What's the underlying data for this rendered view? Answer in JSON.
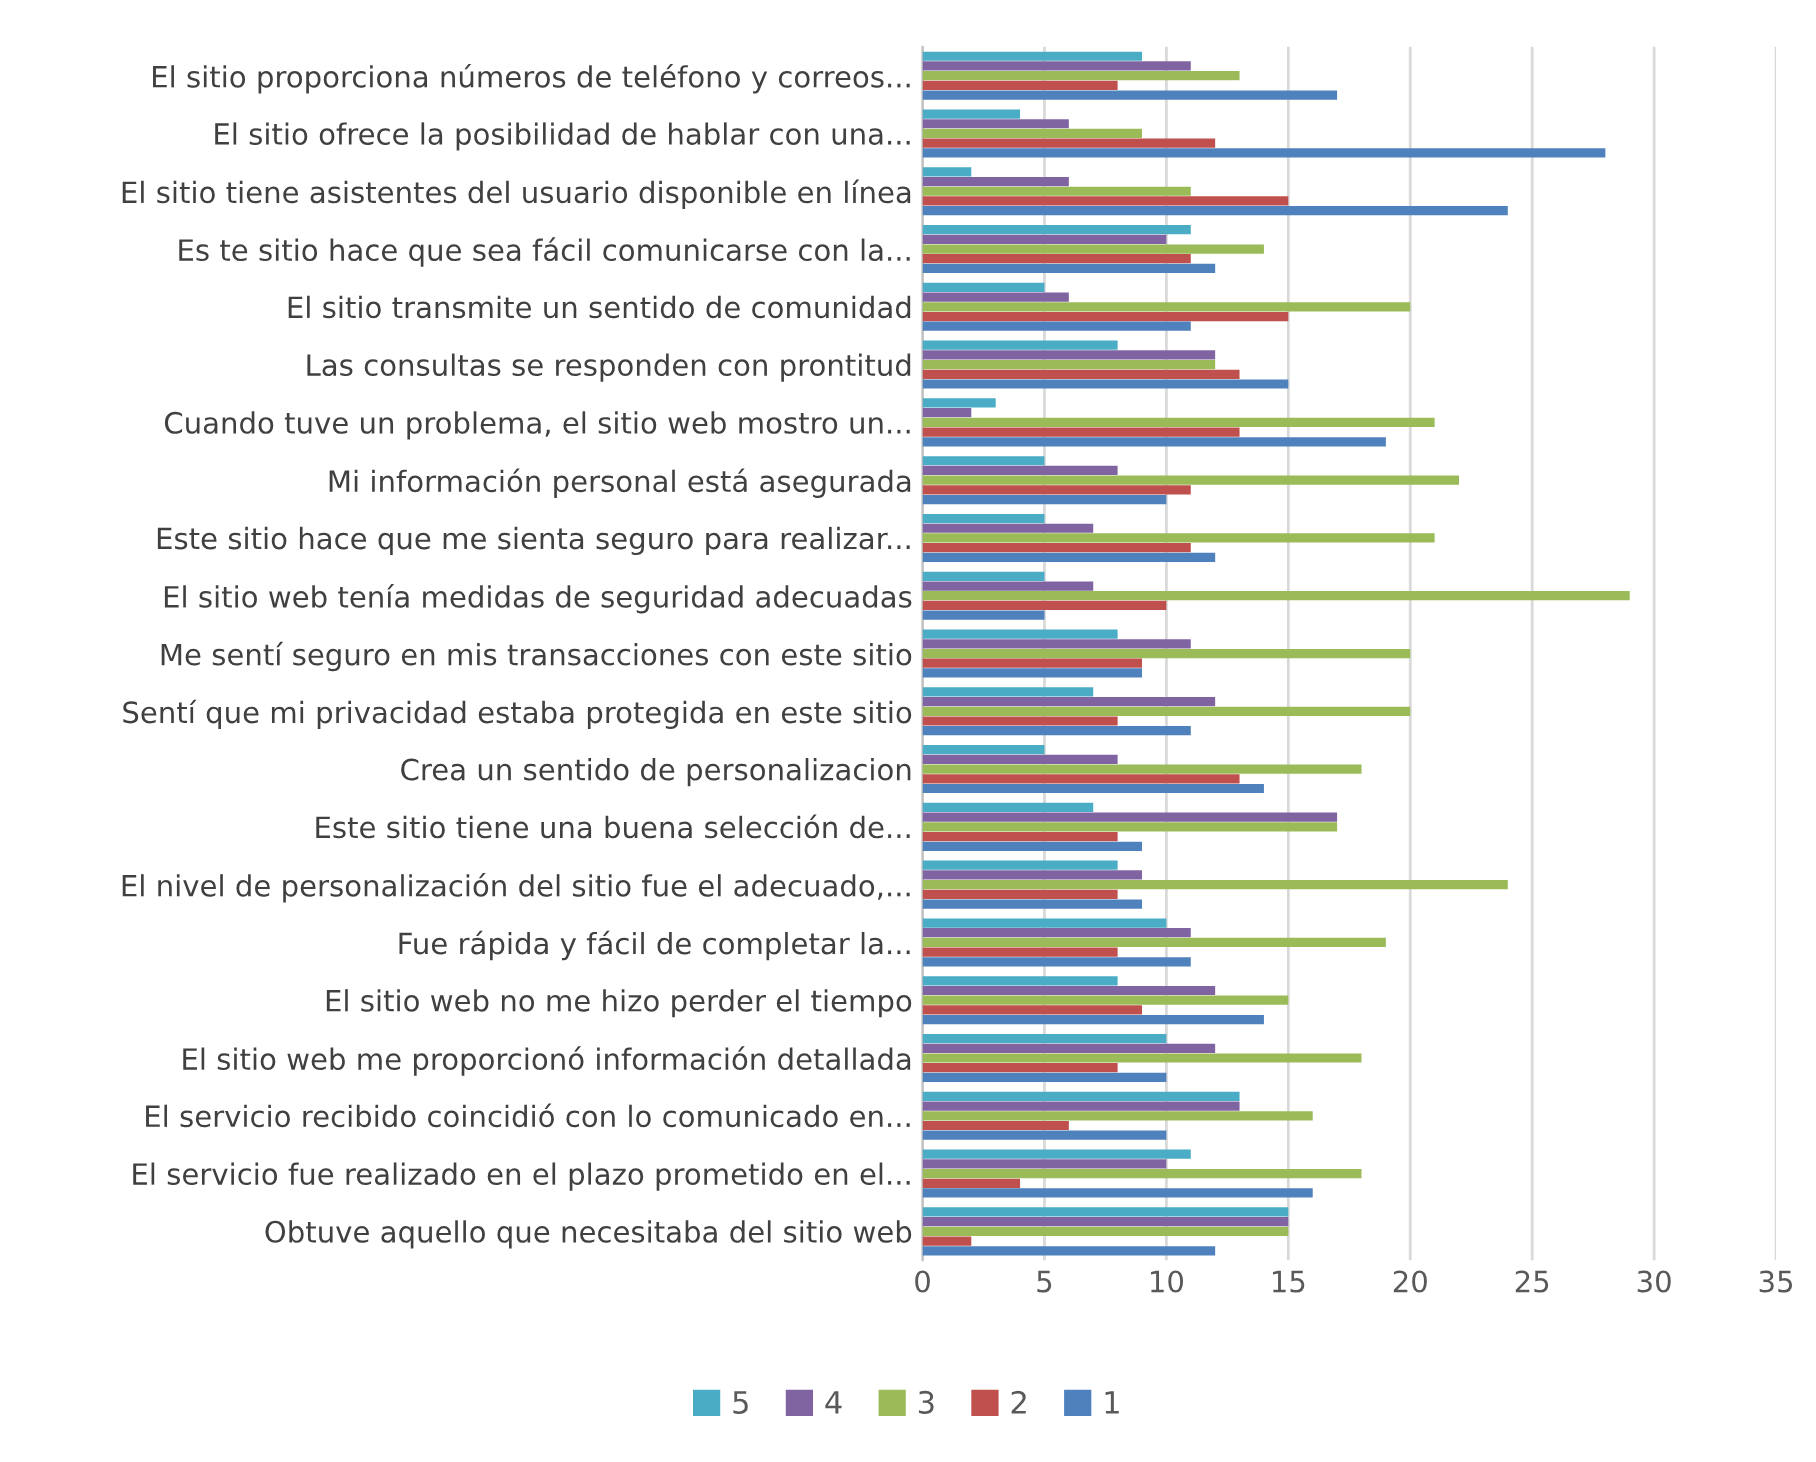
{
  "chart_data": {
    "type": "bar",
    "orientation": "horizontal",
    "categories": [
      "El sitio proporciona números de teléfono y correos...",
      "El sitio ofrece la posibilidad de hablar con una...",
      "El sitio tiene asistentes del usuario disponible en línea",
      "Es te sitio hace que sea fácil comunicarse con la...",
      "El sitio transmite un sentido de comunidad",
      "Las consultas se responden con prontitud",
      "Cuando tuve un problema, el sitio web mostro un...",
      "Mi información personal está asegurada",
      "Este sitio hace que me sienta seguro para realizar...",
      "El sitio web tenía medidas de seguridad adecuadas",
      "Me sentí seguro en mis transacciones con este sitio",
      "Sentí que mi privacidad estaba protegida en este sitio",
      "Crea un sentido de personalizacion",
      "Este sitio tiene una buena selección de...",
      "El nivel de personalización del sitio fue el adecuado,...",
      "Fue rápida y fácil de completar la...",
      "El sitio web no me hizo perder el tiempo",
      "El sitio web me proporcionó información detallada",
      "El servicio recibido coincidió con lo comunicado en...",
      "El servicio fue realizado en el plazo prometido en el...",
      "Obtuve aquello que necesitaba del sitio web"
    ],
    "series": [
      {
        "name": "5",
        "color": "#4bacc6",
        "values": [
          9,
          4,
          2,
          11,
          5,
          8,
          3,
          5,
          5,
          5,
          8,
          7,
          5,
          7,
          8,
          10,
          8,
          10,
          13,
          11,
          15
        ]
      },
      {
        "name": "4",
        "color": "#8064a2",
        "values": [
          11,
          6,
          6,
          10,
          6,
          12,
          2,
          8,
          7,
          7,
          11,
          12,
          8,
          17,
          9,
          11,
          12,
          12,
          13,
          10,
          15
        ]
      },
      {
        "name": "3",
        "color": "#9bbb59",
        "values": [
          13,
          9,
          11,
          14,
          20,
          12,
          21,
          22,
          21,
          29,
          20,
          20,
          18,
          17,
          24,
          19,
          15,
          18,
          16,
          18,
          15
        ]
      },
      {
        "name": "2",
        "color": "#c0504d",
        "values": [
          8,
          12,
          15,
          11,
          15,
          13,
          13,
          11,
          11,
          10,
          9,
          8,
          13,
          8,
          8,
          8,
          9,
          8,
          6,
          4,
          2
        ]
      },
      {
        "name": "1",
        "color": "#4f81bd",
        "values": [
          17,
          28,
          24,
          12,
          11,
          15,
          19,
          10,
          12,
          5,
          9,
          11,
          14,
          9,
          9,
          11,
          14,
          10,
          10,
          16,
          12
        ]
      }
    ],
    "xlim": [
      0,
      35
    ],
    "xticks": [
      0,
      5,
      10,
      15,
      20,
      25,
      30,
      35
    ],
    "grid": "x",
    "legend": "bottom"
  }
}
